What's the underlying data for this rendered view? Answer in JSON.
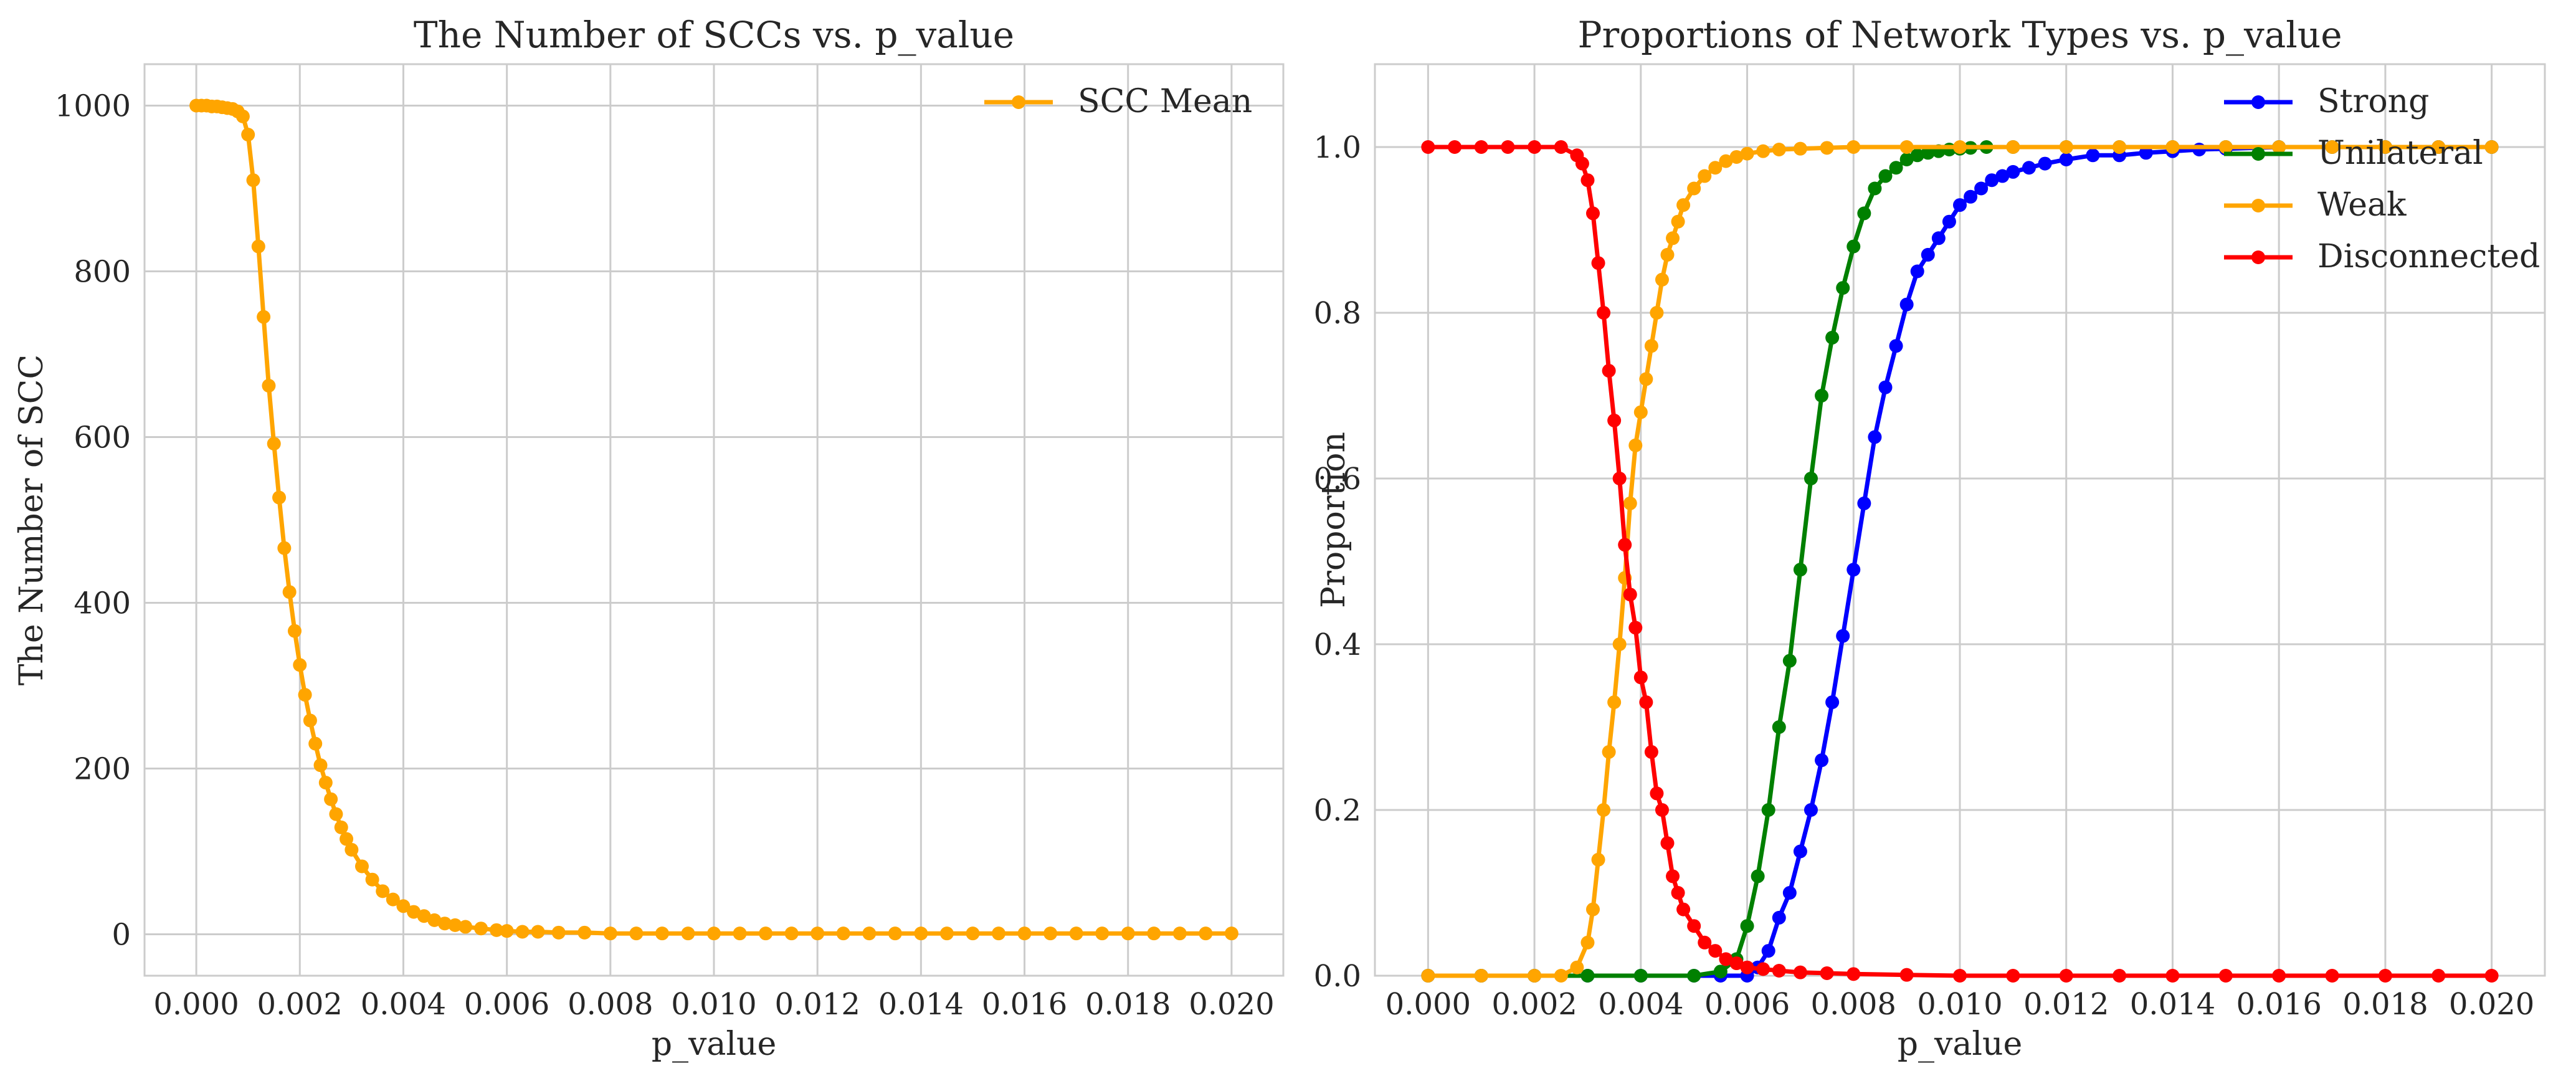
{
  "chart_data": [
    {
      "type": "line",
      "title": "The Number of SCCs vs. p_value",
      "xlabel": "p_value",
      "ylabel": "The Number of SCC",
      "xlim": [
        -0.001,
        0.021
      ],
      "ylim": [
        -50,
        1050
      ],
      "xticks": [
        0.0,
        0.002,
        0.004,
        0.006,
        0.008,
        0.01,
        0.012,
        0.014,
        0.016,
        0.018,
        0.02
      ],
      "xtick_labels": [
        "0.000",
        "0.002",
        "0.004",
        "0.006",
        "0.008",
        "0.010",
        "0.012",
        "0.014",
        "0.016",
        "0.018",
        "0.020"
      ],
      "yticks": [
        0,
        200,
        400,
        600,
        800,
        1000
      ],
      "ytick_labels": [
        "0",
        "200",
        "400",
        "600",
        "800",
        "1000"
      ],
      "grid": true,
      "legend_position": "top-right",
      "series": [
        {
          "name": "SCC Mean",
          "color": "#FFA500",
          "x": [
            0.0,
            0.0001,
            0.0002,
            0.0003,
            0.0004,
            0.0005,
            0.0006,
            0.0007,
            0.0008,
            0.0009,
            0.001,
            0.0011,
            0.0012,
            0.0013,
            0.0014,
            0.0015,
            0.0016,
            0.0017,
            0.0018,
            0.0019,
            0.002,
            0.0021,
            0.0022,
            0.0023,
            0.0024,
            0.0025,
            0.0026,
            0.0027,
            0.0028,
            0.0029,
            0.003,
            0.0032,
            0.0034,
            0.0036,
            0.0038,
            0.004,
            0.0042,
            0.0044,
            0.0046,
            0.0048,
            0.005,
            0.0052,
            0.0055,
            0.0058,
            0.006,
            0.0063,
            0.0066,
            0.007,
            0.0075,
            0.008,
            0.0085,
            0.009,
            0.0095,
            0.01,
            0.0105,
            0.011,
            0.0115,
            0.012,
            0.0125,
            0.013,
            0.0135,
            0.014,
            0.0145,
            0.015,
            0.0155,
            0.016,
            0.0165,
            0.017,
            0.0175,
            0.018,
            0.0185,
            0.019,
            0.0195,
            0.02
          ],
          "y": [
            1000,
            1000,
            1000,
            999,
            999,
            998,
            997,
            996,
            993,
            987,
            965,
            910,
            830,
            745,
            662,
            592,
            527,
            466,
            413,
            366,
            325,
            289,
            258,
            230,
            204,
            183,
            163,
            145,
            129,
            115,
            102,
            82,
            66,
            52,
            42,
            34,
            27,
            22,
            17,
            13,
            11,
            9,
            7,
            5,
            4,
            3,
            3,
            2,
            2,
            1,
            1,
            1,
            1,
            1,
            1,
            1,
            1,
            1,
            1,
            1,
            1,
            1,
            1,
            1,
            1,
            1,
            1,
            1,
            1,
            1,
            1,
            1,
            1,
            1
          ]
        }
      ]
    },
    {
      "type": "line",
      "title": "Proportions of Network Types vs. p_value",
      "xlabel": "p_value",
      "ylabel": "Proportion",
      "xlim": [
        -0.001,
        0.021
      ],
      "ylim": [
        0.0,
        1.1
      ],
      "xticks": [
        0.0,
        0.002,
        0.004,
        0.006,
        0.008,
        0.01,
        0.012,
        0.014,
        0.016,
        0.018,
        0.02
      ],
      "xtick_labels": [
        "0.000",
        "0.002",
        "0.004",
        "0.006",
        "0.008",
        "0.010",
        "0.012",
        "0.014",
        "0.016",
        "0.018",
        "0.020"
      ],
      "yticks": [
        0.0,
        0.2,
        0.4,
        0.6,
        0.8,
        1.0
      ],
      "ytick_labels": [
        "0.0",
        "0.2",
        "0.4",
        "0.6",
        "0.8",
        "1.0"
      ],
      "grid": true,
      "legend_position": "top-right",
      "series": [
        {
          "name": "Strong",
          "color": "#0000FF",
          "x": [
            0.0,
            0.001,
            0.002,
            0.003,
            0.004,
            0.005,
            0.0055,
            0.006,
            0.0062,
            0.0064,
            0.0066,
            0.0068,
            0.007,
            0.0072,
            0.0074,
            0.0076,
            0.0078,
            0.008,
            0.0082,
            0.0084,
            0.0086,
            0.0088,
            0.009,
            0.0092,
            0.0094,
            0.0096,
            0.0098,
            0.01,
            0.0102,
            0.0104,
            0.0106,
            0.0108,
            0.011,
            0.0113,
            0.0116,
            0.012,
            0.0125,
            0.013,
            0.0135,
            0.014,
            0.0145,
            0.015,
            0.016,
            0.017,
            0.018,
            0.019,
            0.02
          ],
          "y": [
            0.0,
            0.0,
            0.0,
            0.0,
            0.0,
            0.0,
            0.0,
            0.0,
            0.01,
            0.03,
            0.07,
            0.1,
            0.15,
            0.2,
            0.26,
            0.33,
            0.41,
            0.49,
            0.57,
            0.65,
            0.71,
            0.76,
            0.81,
            0.85,
            0.87,
            0.89,
            0.91,
            0.93,
            0.94,
            0.95,
            0.96,
            0.965,
            0.97,
            0.975,
            0.98,
            0.985,
            0.99,
            0.99,
            0.993,
            0.995,
            0.997,
            0.998,
            1.0,
            1.0,
            1.0,
            1.0,
            1.0
          ]
        },
        {
          "name": "Unilateral",
          "color": "#008000",
          "x": [
            0.0,
            0.001,
            0.002,
            0.003,
            0.004,
            0.005,
            0.0055,
            0.0058,
            0.006,
            0.0062,
            0.0064,
            0.0066,
            0.0068,
            0.007,
            0.0072,
            0.0074,
            0.0076,
            0.0078,
            0.008,
            0.0082,
            0.0084,
            0.0086,
            0.0088,
            0.009,
            0.0092,
            0.0094,
            0.0096,
            0.0098,
            0.01,
            0.0102,
            0.0105,
            0.011,
            0.012,
            0.013,
            0.014,
            0.015,
            0.016,
            0.017,
            0.018,
            0.019,
            0.02
          ],
          "y": [
            0.0,
            0.0,
            0.0,
            0.0,
            0.0,
            0.0,
            0.005,
            0.02,
            0.06,
            0.12,
            0.2,
            0.3,
            0.38,
            0.49,
            0.6,
            0.7,
            0.77,
            0.83,
            0.88,
            0.92,
            0.95,
            0.965,
            0.975,
            0.985,
            0.99,
            0.993,
            0.995,
            0.997,
            0.998,
            0.999,
            1.0,
            1.0,
            1.0,
            1.0,
            1.0,
            1.0,
            1.0,
            1.0,
            1.0,
            1.0,
            1.0
          ]
        },
        {
          "name": "Weak",
          "color": "#FFA500",
          "x": [
            0.0,
            0.001,
            0.002,
            0.0025,
            0.0028,
            0.003,
            0.0031,
            0.0032,
            0.0033,
            0.0034,
            0.0035,
            0.0036,
            0.0037,
            0.0038,
            0.0039,
            0.004,
            0.0041,
            0.0042,
            0.0043,
            0.0044,
            0.0045,
            0.0046,
            0.0047,
            0.0048,
            0.005,
            0.0052,
            0.0054,
            0.0056,
            0.0058,
            0.006,
            0.0063,
            0.0066,
            0.007,
            0.0075,
            0.008,
            0.009,
            0.01,
            0.011,
            0.012,
            0.013,
            0.014,
            0.015,
            0.016,
            0.017,
            0.018,
            0.019,
            0.02
          ],
          "y": [
            0.0,
            0.0,
            0.0,
            0.0,
            0.01,
            0.04,
            0.08,
            0.14,
            0.2,
            0.27,
            0.33,
            0.4,
            0.48,
            0.57,
            0.64,
            0.68,
            0.72,
            0.76,
            0.8,
            0.84,
            0.87,
            0.89,
            0.91,
            0.93,
            0.95,
            0.965,
            0.975,
            0.983,
            0.988,
            0.992,
            0.995,
            0.997,
            0.998,
            0.999,
            1.0,
            1.0,
            1.0,
            1.0,
            1.0,
            1.0,
            1.0,
            1.0,
            1.0,
            1.0,
            1.0,
            1.0,
            1.0
          ]
        },
        {
          "name": "Disconnected",
          "color": "#FF0000",
          "x": [
            0.0,
            0.0005,
            0.001,
            0.0015,
            0.002,
            0.0025,
            0.0028,
            0.0029,
            0.003,
            0.0031,
            0.0032,
            0.0033,
            0.0034,
            0.0035,
            0.0036,
            0.0037,
            0.0038,
            0.0039,
            0.004,
            0.0041,
            0.0042,
            0.0043,
            0.0044,
            0.0045,
            0.0046,
            0.0047,
            0.0048,
            0.005,
            0.0052,
            0.0054,
            0.0056,
            0.0058,
            0.006,
            0.0063,
            0.0066,
            0.007,
            0.0075,
            0.008,
            0.009,
            0.01,
            0.011,
            0.012,
            0.013,
            0.014,
            0.015,
            0.016,
            0.017,
            0.018,
            0.019,
            0.02
          ],
          "y": [
            1.0,
            1.0,
            1.0,
            1.0,
            1.0,
            1.0,
            0.99,
            0.98,
            0.96,
            0.92,
            0.86,
            0.8,
            0.73,
            0.67,
            0.6,
            0.52,
            0.46,
            0.42,
            0.36,
            0.33,
            0.27,
            0.22,
            0.2,
            0.16,
            0.12,
            0.1,
            0.08,
            0.06,
            0.04,
            0.03,
            0.02,
            0.015,
            0.01,
            0.008,
            0.006,
            0.004,
            0.003,
            0.002,
            0.001,
            0.0,
            0.0,
            0.0,
            0.0,
            0.0,
            0.0,
            0.0,
            0.0,
            0.0,
            0.0,
            0.0
          ]
        }
      ]
    }
  ]
}
